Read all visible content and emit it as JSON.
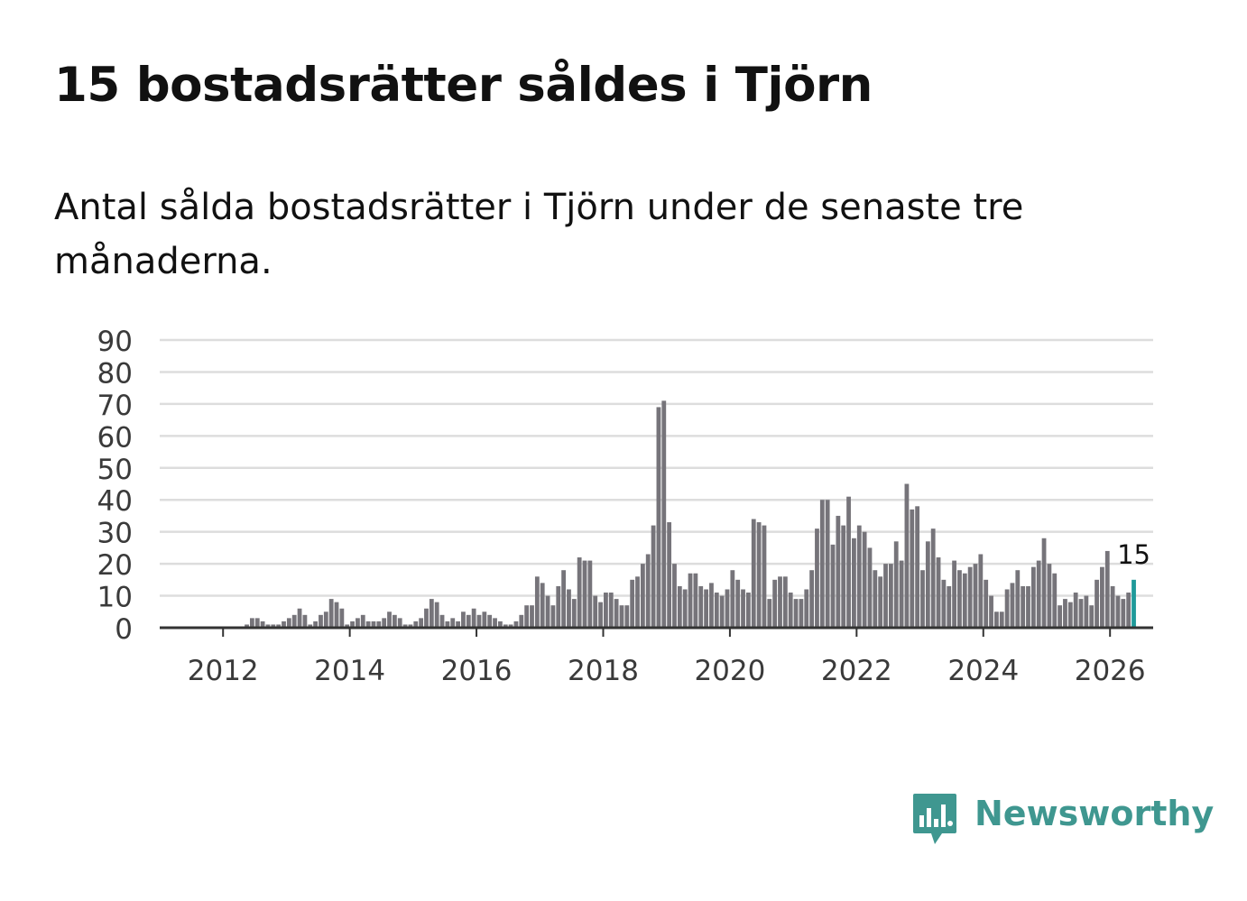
{
  "header": {
    "title": "15 bostadsrätter såldes i Tjörn",
    "subtitle": "Antal sålda bostadsrätter i Tjörn under de senaste tre månaderna."
  },
  "brand": {
    "name": "Newsworthy",
    "color": "#3f9790",
    "icon": "newsworthy-logo-icon"
  },
  "colors": {
    "bar": "#76747a",
    "highlight": "#1f9a9a",
    "grid": "#dddddd",
    "axis": "#333333",
    "tick_text": "#3a3a3a"
  },
  "chart_data": {
    "type": "bar",
    "title": "15 bostadsrätter såldes i Tjörn",
    "xlabel": "",
    "ylabel": "",
    "ylim": [
      0,
      90
    ],
    "yticks": [
      "0",
      "10",
      "20",
      "30",
      "40",
      "50",
      "60",
      "70",
      "80",
      "90"
    ],
    "xticks": [
      "2012",
      "2014",
      "2016",
      "2018",
      "2020",
      "2022",
      "2024",
      "2026"
    ],
    "x_start": "2011-01",
    "x_end": "2026-09",
    "grid": true,
    "highlight_label": "15",
    "series": [
      {
        "name": "Sålda bostadsrätter",
        "start": "2011-09",
        "values": [
          0,
          0,
          0,
          0,
          0,
          0,
          0,
          0,
          1,
          3,
          3,
          2,
          1,
          1,
          1,
          2,
          3,
          4,
          6,
          4,
          1,
          2,
          4,
          5,
          9,
          8,
          6,
          1,
          2,
          3,
          4,
          2,
          2,
          2,
          3,
          5,
          4,
          3,
          1,
          1,
          2,
          3,
          6,
          9,
          8,
          4,
          2,
          3,
          2,
          5,
          4,
          6,
          4,
          5,
          4,
          3,
          2,
          1,
          1,
          2,
          4,
          7,
          7,
          16,
          14,
          10,
          7,
          13,
          18,
          12,
          9,
          22,
          21,
          21,
          10,
          8,
          11,
          11,
          9,
          7,
          7,
          15,
          16,
          20,
          23,
          32,
          69,
          71,
          33,
          20,
          13,
          12,
          17,
          17,
          13,
          12,
          14,
          11,
          10,
          12,
          18,
          15,
          12,
          11,
          34,
          33,
          32,
          9,
          15,
          16,
          16,
          11,
          9,
          9,
          12,
          18,
          31,
          40,
          40,
          26,
          35,
          32,
          41,
          28,
          32,
          30,
          25,
          18,
          16,
          20,
          20,
          27,
          21,
          45,
          37,
          38,
          18,
          27,
          31,
          22,
          15,
          13,
          21,
          18,
          17,
          19,
          20,
          23,
          15,
          10,
          5,
          5,
          12,
          14,
          18,
          13,
          13,
          19,
          21,
          28,
          20,
          17,
          7,
          9,
          8,
          11,
          9,
          10,
          7,
          15,
          19,
          24,
          13,
          10,
          9,
          11,
          15
        ]
      }
    ]
  }
}
